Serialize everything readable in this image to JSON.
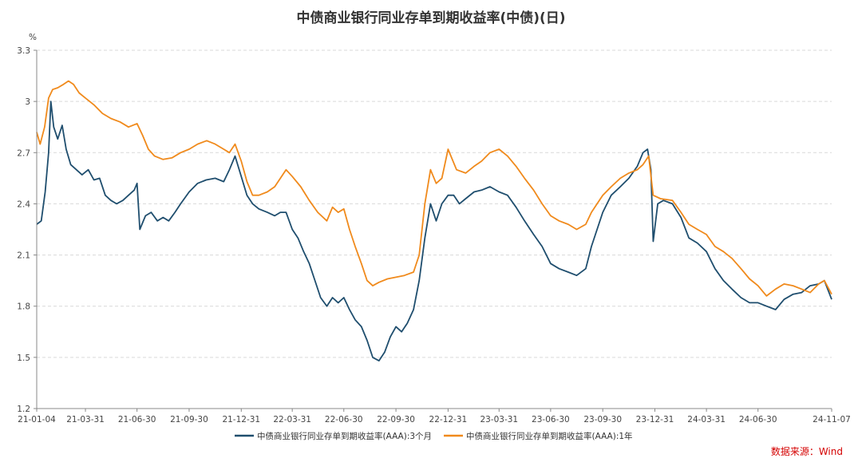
{
  "chart_data": {
    "type": "line",
    "title": "中债商业银行同业存单到期收益率(中债)(日)",
    "ylabel": "%",
    "ylim": [
      1.2,
      3.3
    ],
    "yticks": [
      "1.2",
      "1.5",
      "1.8",
      "2.1",
      "2.4",
      "2.7",
      "3",
      "3.3"
    ],
    "x_start": "2021-01-04",
    "x_end": "2024-11-07",
    "xticks": [
      {
        "label": "21-01-04",
        "date": "2021-01-04"
      },
      {
        "label": "21-03-31",
        "date": "2021-03-31"
      },
      {
        "label": "21-06-30",
        "date": "2021-06-30"
      },
      {
        "label": "21-09-30",
        "date": "2021-09-30"
      },
      {
        "label": "21-12-31",
        "date": "2021-12-31"
      },
      {
        "label": "22-03-31",
        "date": "2022-03-31"
      },
      {
        "label": "22-06-30",
        "date": "2022-06-30"
      },
      {
        "label": "22-09-30",
        "date": "2022-09-30"
      },
      {
        "label": "22-12-31",
        "date": "2022-12-31"
      },
      {
        "label": "23-03-31",
        "date": "2023-03-31"
      },
      {
        "label": "23-06-30",
        "date": "2023-06-30"
      },
      {
        "label": "23-09-30",
        "date": "2023-09-30"
      },
      {
        "label": "23-12-31",
        "date": "2023-12-31"
      },
      {
        "label": "24-03-31",
        "date": "2024-03-31"
      },
      {
        "label": "24-06-30",
        "date": "2024-06-30"
      },
      {
        "label": "24-11-07",
        "date": "2024-11-07"
      }
    ],
    "grid": true,
    "legend_position": "bottom",
    "series": [
      {
        "name": "中债商业银行同业存单到期收益率(AAA):3个月",
        "color": "#1f4e6e",
        "points": [
          [
            "2021-01-04",
            2.28
          ],
          [
            "2021-01-12",
            2.3
          ],
          [
            "2021-01-19",
            2.47
          ],
          [
            "2021-01-25",
            2.7
          ],
          [
            "2021-01-29",
            3.0
          ],
          [
            "2021-02-03",
            2.85
          ],
          [
            "2021-02-10",
            2.78
          ],
          [
            "2021-02-18",
            2.86
          ],
          [
            "2021-02-25",
            2.72
          ],
          [
            "2021-03-05",
            2.63
          ],
          [
            "2021-03-15",
            2.6
          ],
          [
            "2021-03-25",
            2.57
          ],
          [
            "2021-04-05",
            2.6
          ],
          [
            "2021-04-15",
            2.54
          ],
          [
            "2021-04-25",
            2.55
          ],
          [
            "2021-05-05",
            2.45
          ],
          [
            "2021-05-15",
            2.42
          ],
          [
            "2021-05-25",
            2.4
          ],
          [
            "2021-06-05",
            2.42
          ],
          [
            "2021-06-15",
            2.45
          ],
          [
            "2021-06-25",
            2.48
          ],
          [
            "2021-06-30",
            2.52
          ],
          [
            "2021-07-05",
            2.25
          ],
          [
            "2021-07-15",
            2.33
          ],
          [
            "2021-07-25",
            2.35
          ],
          [
            "2021-08-05",
            2.3
          ],
          [
            "2021-08-15",
            2.32
          ],
          [
            "2021-08-25",
            2.3
          ],
          [
            "2021-09-05",
            2.35
          ],
          [
            "2021-09-15",
            2.4
          ],
          [
            "2021-09-30",
            2.47
          ],
          [
            "2021-10-15",
            2.52
          ],
          [
            "2021-10-30",
            2.54
          ],
          [
            "2021-11-15",
            2.55
          ],
          [
            "2021-11-30",
            2.53
          ],
          [
            "2021-12-10",
            2.6
          ],
          [
            "2021-12-20",
            2.68
          ],
          [
            "2021-12-31",
            2.56
          ],
          [
            "2022-01-10",
            2.45
          ],
          [
            "2022-01-20",
            2.4
          ],
          [
            "2022-01-31",
            2.37
          ],
          [
            "2022-02-15",
            2.35
          ],
          [
            "2022-02-28",
            2.33
          ],
          [
            "2022-03-10",
            2.35
          ],
          [
            "2022-03-20",
            2.35
          ],
          [
            "2022-03-31",
            2.25
          ],
          [
            "2022-04-10",
            2.2
          ],
          [
            "2022-04-20",
            2.12
          ],
          [
            "2022-04-30",
            2.05
          ],
          [
            "2022-05-10",
            1.95
          ],
          [
            "2022-05-20",
            1.85
          ],
          [
            "2022-05-31",
            1.8
          ],
          [
            "2022-06-10",
            1.85
          ],
          [
            "2022-06-20",
            1.82
          ],
          [
            "2022-06-30",
            1.85
          ],
          [
            "2022-07-10",
            1.78
          ],
          [
            "2022-07-20",
            1.72
          ],
          [
            "2022-07-31",
            1.68
          ],
          [
            "2022-08-10",
            1.6
          ],
          [
            "2022-08-20",
            1.5
          ],
          [
            "2022-08-31",
            1.48
          ],
          [
            "2022-09-10",
            1.53
          ],
          [
            "2022-09-20",
            1.62
          ],
          [
            "2022-09-30",
            1.68
          ],
          [
            "2022-10-10",
            1.65
          ],
          [
            "2022-10-20",
            1.7
          ],
          [
            "2022-10-31",
            1.78
          ],
          [
            "2022-11-10",
            1.95
          ],
          [
            "2022-11-20",
            2.2
          ],
          [
            "2022-11-30",
            2.4
          ],
          [
            "2022-12-10",
            2.3
          ],
          [
            "2022-12-20",
            2.4
          ],
          [
            "2022-12-31",
            2.45
          ],
          [
            "2023-01-10",
            2.45
          ],
          [
            "2023-01-20",
            2.4
          ],
          [
            "2023-01-31",
            2.43
          ],
          [
            "2023-02-15",
            2.47
          ],
          [
            "2023-02-28",
            2.48
          ],
          [
            "2023-03-15",
            2.5
          ],
          [
            "2023-03-31",
            2.47
          ],
          [
            "2023-04-15",
            2.45
          ],
          [
            "2023-04-30",
            2.38
          ],
          [
            "2023-05-15",
            2.3
          ],
          [
            "2023-05-31",
            2.22
          ],
          [
            "2023-06-15",
            2.15
          ],
          [
            "2023-06-30",
            2.05
          ],
          [
            "2023-07-15",
            2.02
          ],
          [
            "2023-07-31",
            2.0
          ],
          [
            "2023-08-15",
            1.98
          ],
          [
            "2023-08-31",
            2.02
          ],
          [
            "2023-09-10",
            2.15
          ],
          [
            "2023-09-20",
            2.25
          ],
          [
            "2023-09-30",
            2.35
          ],
          [
            "2023-10-15",
            2.45
          ],
          [
            "2023-10-31",
            2.5
          ],
          [
            "2023-11-15",
            2.55
          ],
          [
            "2023-11-30",
            2.62
          ],
          [
            "2023-12-10",
            2.7
          ],
          [
            "2023-12-18",
            2.72
          ],
          [
            "2023-12-24",
            2.6
          ],
          [
            "2023-12-28",
            2.18
          ],
          [
            "2024-01-05",
            2.4
          ],
          [
            "2024-01-15",
            2.42
          ],
          [
            "2024-01-31",
            2.4
          ],
          [
            "2024-02-15",
            2.32
          ],
          [
            "2024-02-29",
            2.2
          ],
          [
            "2024-03-15",
            2.17
          ],
          [
            "2024-03-31",
            2.12
          ],
          [
            "2024-04-15",
            2.02
          ],
          [
            "2024-04-30",
            1.95
          ],
          [
            "2024-05-15",
            1.9
          ],
          [
            "2024-05-31",
            1.85
          ],
          [
            "2024-06-15",
            1.82
          ],
          [
            "2024-06-30",
            1.82
          ],
          [
            "2024-07-15",
            1.8
          ],
          [
            "2024-07-31",
            1.78
          ],
          [
            "2024-08-15",
            1.84
          ],
          [
            "2024-08-31",
            1.87
          ],
          [
            "2024-09-15",
            1.88
          ],
          [
            "2024-09-30",
            1.92
          ],
          [
            "2024-10-15",
            1.93
          ],
          [
            "2024-10-25",
            1.95
          ],
          [
            "2024-11-07",
            1.84
          ]
        ]
      },
      {
        "name": "中债商业银行同业存单到期收益率(AAA):1年",
        "color": "#f08a1c",
        "points": [
          [
            "2021-01-04",
            2.82
          ],
          [
            "2021-01-10",
            2.75
          ],
          [
            "2021-01-18",
            2.85
          ],
          [
            "2021-01-25",
            3.02
          ],
          [
            "2021-02-01",
            3.07
          ],
          [
            "2021-02-10",
            3.08
          ],
          [
            "2021-02-20",
            3.1
          ],
          [
            "2021-03-01",
            3.12
          ],
          [
            "2021-03-10",
            3.1
          ],
          [
            "2021-03-20",
            3.05
          ],
          [
            "2021-03-31",
            3.02
          ],
          [
            "2021-04-15",
            2.98
          ],
          [
            "2021-04-30",
            2.93
          ],
          [
            "2021-05-15",
            2.9
          ],
          [
            "2021-05-31",
            2.88
          ],
          [
            "2021-06-15",
            2.85
          ],
          [
            "2021-06-30",
            2.87
          ],
          [
            "2021-07-10",
            2.8
          ],
          [
            "2021-07-20",
            2.72
          ],
          [
            "2021-07-31",
            2.68
          ],
          [
            "2021-08-15",
            2.66
          ],
          [
            "2021-08-31",
            2.67
          ],
          [
            "2021-09-15",
            2.7
          ],
          [
            "2021-09-30",
            2.72
          ],
          [
            "2021-10-15",
            2.75
          ],
          [
            "2021-10-31",
            2.77
          ],
          [
            "2021-11-15",
            2.75
          ],
          [
            "2021-11-30",
            2.72
          ],
          [
            "2021-12-10",
            2.7
          ],
          [
            "2021-12-20",
            2.75
          ],
          [
            "2021-12-31",
            2.65
          ],
          [
            "2022-01-10",
            2.53
          ],
          [
            "2022-01-20",
            2.45
          ],
          [
            "2022-01-31",
            2.45
          ],
          [
            "2022-02-15",
            2.47
          ],
          [
            "2022-02-28",
            2.5
          ],
          [
            "2022-03-10",
            2.55
          ],
          [
            "2022-03-20",
            2.6
          ],
          [
            "2022-03-31",
            2.56
          ],
          [
            "2022-04-15",
            2.5
          ],
          [
            "2022-04-30",
            2.42
          ],
          [
            "2022-05-15",
            2.35
          ],
          [
            "2022-05-31",
            2.3
          ],
          [
            "2022-06-10",
            2.38
          ],
          [
            "2022-06-20",
            2.35
          ],
          [
            "2022-06-30",
            2.37
          ],
          [
            "2022-07-10",
            2.25
          ],
          [
            "2022-07-20",
            2.15
          ],
          [
            "2022-07-31",
            2.05
          ],
          [
            "2022-08-10",
            1.95
          ],
          [
            "2022-08-20",
            1.92
          ],
          [
            "2022-08-31",
            1.94
          ],
          [
            "2022-09-15",
            1.96
          ],
          [
            "2022-09-30",
            1.97
          ],
          [
            "2022-10-15",
            1.98
          ],
          [
            "2022-10-31",
            2.0
          ],
          [
            "2022-11-10",
            2.1
          ],
          [
            "2022-11-20",
            2.4
          ],
          [
            "2022-11-30",
            2.6
          ],
          [
            "2022-12-10",
            2.52
          ],
          [
            "2022-12-20",
            2.55
          ],
          [
            "2022-12-31",
            2.72
          ],
          [
            "2023-01-15",
            2.6
          ],
          [
            "2023-01-31",
            2.58
          ],
          [
            "2023-02-15",
            2.62
          ],
          [
            "2023-02-28",
            2.65
          ],
          [
            "2023-03-15",
            2.7
          ],
          [
            "2023-03-31",
            2.72
          ],
          [
            "2023-04-15",
            2.68
          ],
          [
            "2023-04-30",
            2.62
          ],
          [
            "2023-05-15",
            2.55
          ],
          [
            "2023-05-31",
            2.48
          ],
          [
            "2023-06-15",
            2.4
          ],
          [
            "2023-06-30",
            2.33
          ],
          [
            "2023-07-15",
            2.3
          ],
          [
            "2023-07-31",
            2.28
          ],
          [
            "2023-08-15",
            2.25
          ],
          [
            "2023-08-31",
            2.28
          ],
          [
            "2023-09-10",
            2.35
          ],
          [
            "2023-09-20",
            2.4
          ],
          [
            "2023-09-30",
            2.45
          ],
          [
            "2023-10-15",
            2.5
          ],
          [
            "2023-10-31",
            2.55
          ],
          [
            "2023-11-15",
            2.58
          ],
          [
            "2023-11-30",
            2.6
          ],
          [
            "2023-12-10",
            2.63
          ],
          [
            "2023-12-20",
            2.68
          ],
          [
            "2023-12-28",
            2.45
          ],
          [
            "2024-01-10",
            2.43
          ],
          [
            "2024-01-31",
            2.42
          ],
          [
            "2024-02-15",
            2.35
          ],
          [
            "2024-02-29",
            2.28
          ],
          [
            "2024-03-15",
            2.25
          ],
          [
            "2024-03-31",
            2.22
          ],
          [
            "2024-04-15",
            2.15
          ],
          [
            "2024-04-30",
            2.12
          ],
          [
            "2024-05-15",
            2.08
          ],
          [
            "2024-05-31",
            2.02
          ],
          [
            "2024-06-15",
            1.96
          ],
          [
            "2024-06-30",
            1.92
          ],
          [
            "2024-07-15",
            1.86
          ],
          [
            "2024-07-31",
            1.9
          ],
          [
            "2024-08-15",
            1.93
          ],
          [
            "2024-08-31",
            1.92
          ],
          [
            "2024-09-15",
            1.9
          ],
          [
            "2024-09-30",
            1.88
          ],
          [
            "2024-10-15",
            1.93
          ],
          [
            "2024-10-25",
            1.95
          ],
          [
            "2024-11-07",
            1.87
          ]
        ]
      }
    ]
  },
  "source_label": "数据来源：Wind"
}
